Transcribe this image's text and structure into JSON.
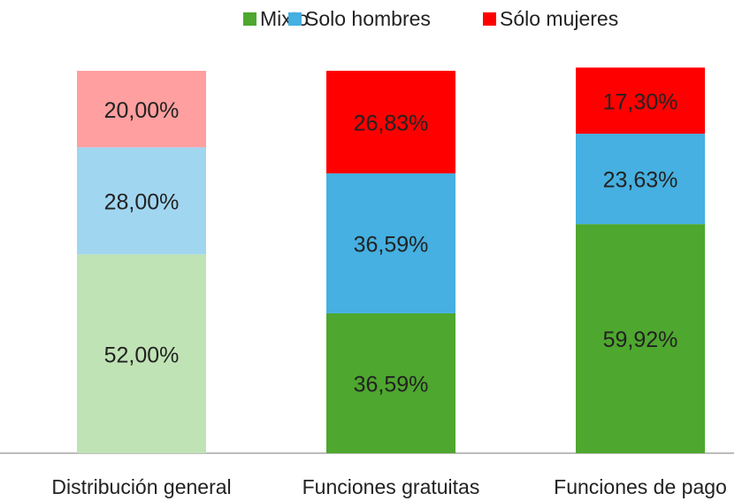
{
  "chart_data": {
    "type": "stacked_bar",
    "categories": [
      "Distribución general",
      "Funciones gratuitas",
      "Funciones de pago"
    ],
    "ylim": [
      0,
      100
    ],
    "legend": "top",
    "series": [
      {
        "name": "Mixto",
        "color": "#4ea72e",
        "colors": [
          "#c0e3b5",
          "#4ea72e",
          "#4ea72e"
        ],
        "values": [
          52.0,
          36.59,
          59.92
        ],
        "value_labels": [
          "52,00%",
          "36,59%",
          "59,92%"
        ]
      },
      {
        "name": "Solo hombres",
        "color": "#45b0e1",
        "colors": [
          "#a1d6f1",
          "#45b0e1",
          "#45b0e1"
        ],
        "values": [
          28.0,
          36.59,
          23.63
        ],
        "value_labels": [
          "28,00%",
          "36,59%",
          "23,63%"
        ]
      },
      {
        "name": "Sólo mujeres",
        "color": "#ff0000",
        "colors": [
          "#ff9f9f",
          "#ff0000",
          "#ff0000"
        ],
        "values": [
          20.0,
          26.83,
          17.3
        ],
        "value_labels": [
          "20,00%",
          "26,83%",
          "17,30%"
        ]
      }
    ]
  }
}
